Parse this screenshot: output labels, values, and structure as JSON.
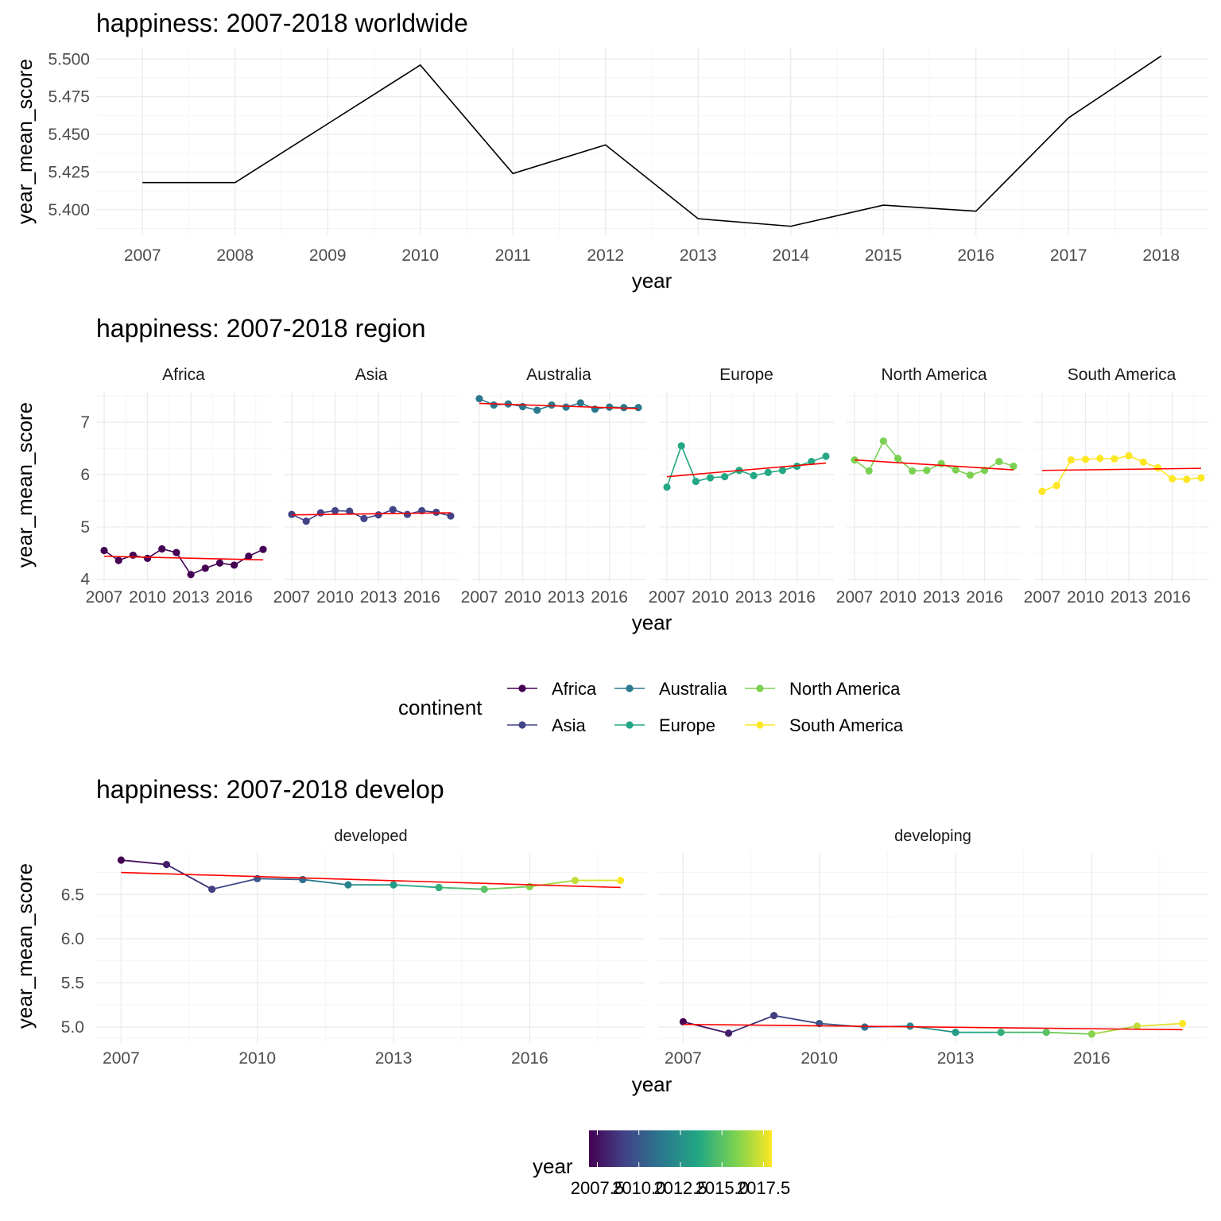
{
  "chart_data": [
    {
      "type": "line",
      "title": "happiness: 2007-2018 worldwide",
      "xlabel": "year",
      "ylabel": "year_mean_score",
      "x": [
        2007,
        2008,
        2009,
        2010,
        2011,
        2012,
        2013,
        2014,
        2015,
        2016,
        2017,
        2018
      ],
      "y": [
        5.418,
        5.418,
        5.457,
        5.496,
        5.424,
        5.443,
        5.394,
        5.389,
        5.403,
        5.399,
        5.461,
        5.502
      ],
      "xlim": [
        2006.5,
        2018.5
      ],
      "ylim": [
        5.383,
        5.507
      ],
      "xticks": [
        2007,
        2008,
        2009,
        2010,
        2011,
        2012,
        2013,
        2014,
        2015,
        2016,
        2017,
        2018
      ],
      "yticks": [
        5.4,
        5.425,
        5.45,
        5.475,
        5.5
      ],
      "ytick_labels": [
        "5.400",
        "5.425",
        "5.450",
        "5.475",
        "5.500"
      ],
      "line_color": "#000000",
      "grid": true
    },
    {
      "type": "line",
      "title": "happiness: 2007-2018 region",
      "xlabel": "year",
      "ylabel": "year_mean_score",
      "xlim": [
        2006.45,
        2018.55
      ],
      "ylim": [
        3.95,
        7.58
      ],
      "xticks": [
        2007,
        2010,
        2013,
        2016
      ],
      "yticks": [
        4,
        5,
        6,
        7
      ],
      "trend_color": "#ff0000",
      "grid": true,
      "legend": {
        "title": "continent",
        "position": "bottom",
        "entries": [
          {
            "label": "Africa",
            "color": "#440154"
          },
          {
            "label": "Asia",
            "color": "#414487"
          },
          {
            "label": "Australia",
            "color": "#2a788e"
          },
          {
            "label": "Europe",
            "color": "#22a884"
          },
          {
            "label": "North America",
            "color": "#7ad151"
          },
          {
            "label": "South America",
            "color": "#fde725"
          }
        ]
      },
      "x": [
        2007,
        2008,
        2009,
        2010,
        2011,
        2012,
        2013,
        2014,
        2015,
        2016,
        2017,
        2018
      ],
      "series": [
        {
          "name": "Africa",
          "color": "#440154",
          "values": [
            4.55,
            4.36,
            4.46,
            4.4,
            4.58,
            4.51,
            4.09,
            4.21,
            4.31,
            4.27,
            4.44,
            4.57
          ],
          "trend": [
            4.44,
            4.37
          ]
        },
        {
          "name": "Asia",
          "color": "#414487",
          "values": [
            5.24,
            5.11,
            5.27,
            5.31,
            5.3,
            5.16,
            5.23,
            5.33,
            5.24,
            5.31,
            5.28,
            5.21
          ],
          "trend": [
            5.23,
            5.27
          ]
        },
        {
          "name": "Australia",
          "color": "#2a788e",
          "values": [
            7.45,
            7.33,
            7.35,
            7.3,
            7.23,
            7.33,
            7.29,
            7.37,
            7.25,
            7.29,
            7.28,
            7.28
          ],
          "trend": [
            7.36,
            7.26
          ]
        },
        {
          "name": "Europe",
          "color": "#22a884",
          "values": [
            5.76,
            6.55,
            5.87,
            5.94,
            5.96,
            6.08,
            5.98,
            6.04,
            6.08,
            6.16,
            6.25,
            6.35
          ],
          "trend": [
            5.96,
            6.22
          ]
        },
        {
          "name": "North America",
          "color": "#7ad151",
          "values": [
            6.28,
            6.07,
            6.64,
            6.31,
            6.07,
            6.08,
            6.21,
            6.09,
            5.99,
            6.08,
            6.25,
            6.16
          ],
          "trend": [
            6.28,
            6.09
          ]
        },
        {
          "name": "South America",
          "color": "#fde725",
          "values": [
            5.68,
            5.79,
            6.28,
            6.29,
            6.31,
            6.3,
            6.36,
            6.24,
            6.13,
            5.92,
            5.91,
            5.94
          ],
          "trend": [
            6.08,
            6.12
          ]
        }
      ]
    },
    {
      "type": "line",
      "title": "happiness: 2007-2018 develop",
      "xlabel": "year",
      "ylabel": "year_mean_score",
      "xlim": [
        2006.45,
        2018.55
      ],
      "ylim": [
        4.82,
        6.98
      ],
      "xticks": [
        2007,
        2010,
        2013,
        2016
      ],
      "yticks": [
        5.0,
        5.5,
        6.0,
        6.5
      ],
      "ytick_labels": [
        "5.0",
        "5.5",
        "6.0",
        "6.5"
      ],
      "trend_color": "#ff0000",
      "grid": true,
      "legend": {
        "title": "year",
        "position": "bottom",
        "type": "colorbar",
        "colors": [
          "#440154",
          "#414487",
          "#2a788e",
          "#22a884",
          "#7ad151",
          "#fde725"
        ],
        "range": [
          2007,
          2018
        ],
        "ticks": [
          2007.5,
          2010.0,
          2012.5,
          2015.0,
          2017.5
        ],
        "tick_labels": [
          "2007.5",
          "2010.0",
          "2012.5",
          "2015.0",
          "2017.5"
        ]
      },
      "x": [
        2007,
        2008,
        2009,
        2010,
        2011,
        2012,
        2013,
        2014,
        2015,
        2016,
        2017,
        2018
      ],
      "series": [
        {
          "name": "developed",
          "values": [
            6.89,
            6.84,
            6.56,
            6.68,
            6.67,
            6.61,
            6.61,
            6.58,
            6.56,
            6.59,
            6.66,
            6.66
          ],
          "trend": [
            6.75,
            6.58
          ]
        },
        {
          "name": "developing",
          "values": [
            5.06,
            4.93,
            5.13,
            5.04,
            5.0,
            5.01,
            4.94,
            4.94,
            4.94,
            4.92,
            5.01,
            5.04
          ],
          "trend": [
            5.03,
            4.97
          ]
        }
      ]
    }
  ]
}
